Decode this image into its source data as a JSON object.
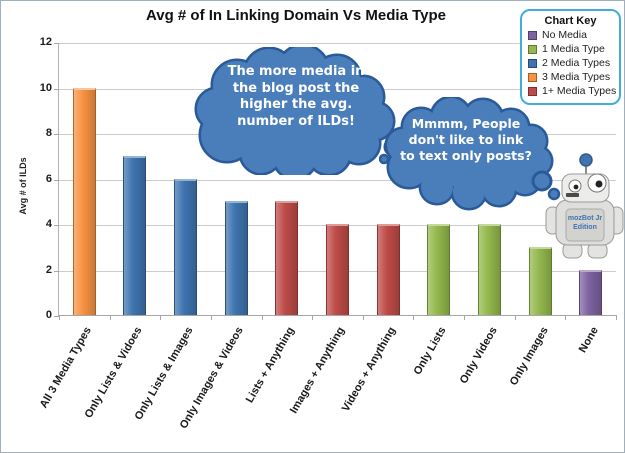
{
  "chart_data": {
    "type": "bar",
    "title": "Avg # of In Linking Domain Vs Media Type",
    "xlabel": "",
    "ylabel": "Avg # of ILDs",
    "ylim": [
      0,
      12
    ],
    "yticks": [
      0,
      2,
      4,
      6,
      8,
      10,
      12
    ],
    "grid": true,
    "legend_position": "top-right",
    "categories": [
      "All 3 Media Types",
      "Only Lists & Vidoes",
      "Only Lists & Images",
      "Only Images & Videos",
      "Lists + Anything",
      "Images + Anything",
      "Videos + Anything",
      "Only Lists",
      "Only Videos",
      "Only Images",
      "None"
    ],
    "values": [
      10,
      7,
      6,
      5,
      5,
      4,
      4,
      4,
      4,
      3,
      2
    ],
    "bar_group": [
      "3 Media Types",
      "2 Media Types",
      "2 Media Types",
      "2 Media Types",
      "1+ Media Types",
      "1+ Media Types",
      "1+ Media Types",
      "1 Media Type",
      "1 Media Type",
      "1 Media Type",
      "No Media"
    ],
    "bar_colors": [
      "#F79243",
      "#3E74B0",
      "#3E74B0",
      "#3E74B0",
      "#BE4B47",
      "#BE4B47",
      "#BE4B47",
      "#94B84C",
      "#94B84C",
      "#94B84C",
      "#7E62A1"
    ]
  },
  "legend": {
    "title": "Chart Key",
    "border_color": "#3FAFD7",
    "items": [
      {
        "label": "No Media",
        "color": "#7E62A1"
      },
      {
        "label": "1 Media Type",
        "color": "#94B84C"
      },
      {
        "label": "2 Media Types",
        "color": "#3E74B0"
      },
      {
        "label": "3 Media Types",
        "color": "#F79243"
      },
      {
        "label": "1+ Media Types",
        "color": "#BE4B47"
      }
    ]
  },
  "annotations": {
    "cloud_fill": "#4A7EBB",
    "cloud_border": "#2B5A9B",
    "cloud1_lines": [
      "The more media in",
      "the blog post the",
      "higher the avg.",
      "number of ILDs!"
    ],
    "cloud2_lines": [
      "Mmmm, People",
      "don't like to link",
      "to text only posts?"
    ]
  },
  "robot": {
    "chest_line1": "mozBot Jr",
    "chest_line2": "Edition",
    "antenna_color": "#3E74B0",
    "label_color": "#3E74B0"
  }
}
